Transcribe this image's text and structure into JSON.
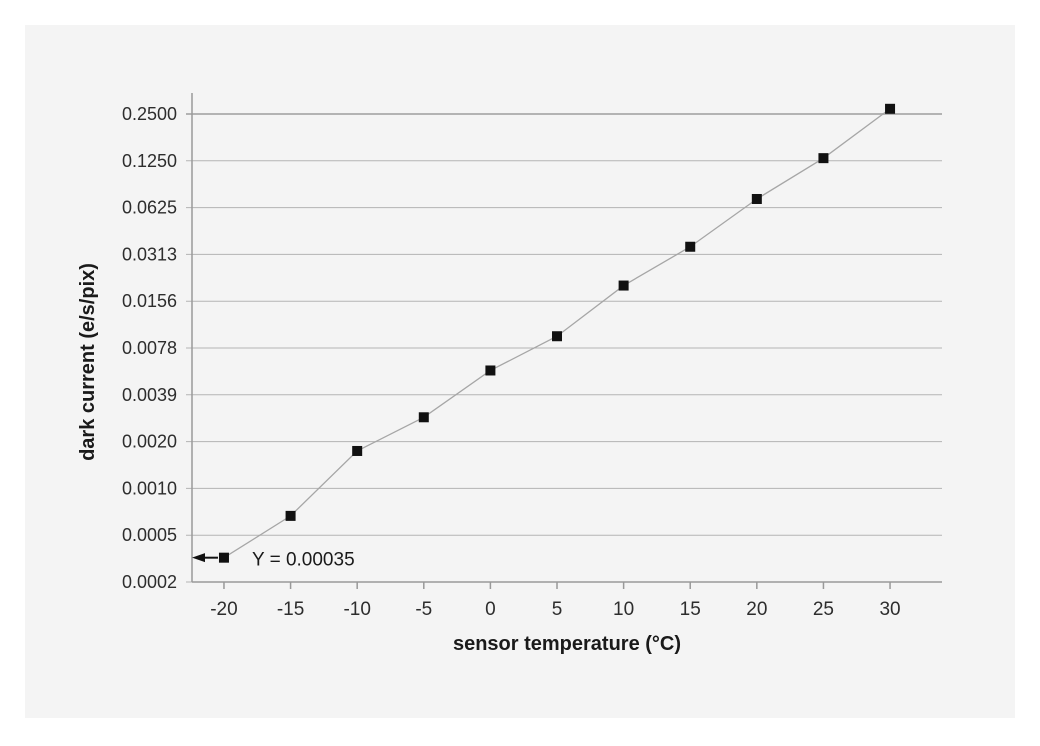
{
  "page": {
    "background_color": "#ffffff",
    "panel_background_color": "#f4f4f4"
  },
  "chart_data": {
    "type": "line",
    "title": "",
    "xlabel": "sensor temperature (°C)",
    "ylabel": "dark current (e/s/pix)",
    "x": [
      -20,
      -15,
      -10,
      -5,
      0,
      5,
      10,
      15,
      20,
      25,
      30
    ],
    "series": [
      {
        "name": "dark current",
        "values": [
          0.00035,
          0.00065,
          0.0017,
          0.0028,
          0.0056,
          0.0093,
          0.0197,
          0.035,
          0.071,
          0.13,
          0.27
        ]
      }
    ],
    "x_ticks": [
      {
        "label": "-20",
        "value": -20
      },
      {
        "label": "-15",
        "value": -15
      },
      {
        "label": "-10",
        "value": -10
      },
      {
        "label": "-5",
        "value": -5
      },
      {
        "label": "0",
        "value": 0
      },
      {
        "label": "5",
        "value": 5
      },
      {
        "label": "10",
        "value": 10
      },
      {
        "label": "15",
        "value": 15
      },
      {
        "label": "20",
        "value": 20
      },
      {
        "label": "25",
        "value": 25
      },
      {
        "label": "30",
        "value": 30
      }
    ],
    "y_ticks": [
      {
        "label": "0.2500",
        "value": 0.25
      },
      {
        "label": "0.1250",
        "value": 0.125
      },
      {
        "label": "0.0625",
        "value": 0.0625
      },
      {
        "label": "0.0313",
        "value": 0.03125
      },
      {
        "label": "0.0156",
        "value": 0.015625
      },
      {
        "label": "0.0078",
        "value": 0.0078125
      },
      {
        "label": "0.0039",
        "value": 0.00390625
      },
      {
        "label": "0.0020",
        "value": 0.001953125
      },
      {
        "label": "0.0010",
        "value": 0.0009765625
      },
      {
        "label": "0.0005",
        "value": 0.00048828125
      },
      {
        "label": "0.0002",
        "value": 0.000244140625
      }
    ],
    "xlim": [
      -22.4,
      33.9
    ],
    "y_scale": "log2",
    "grid": "horizontal",
    "legend": "none",
    "marker_shape": "square",
    "annotation": {
      "text": "Y = 0.00035",
      "target_x": -20,
      "target_y": 0.00035,
      "arrow_direction": "left"
    },
    "colors": {
      "marker": "#111111",
      "line": "#a6a6a6",
      "grid": "#b3b3b3",
      "axis": "#999999",
      "tick_text": "#2d2d2d",
      "title_text": "#1a1a1a",
      "annotation_arrow": "#111111"
    }
  }
}
